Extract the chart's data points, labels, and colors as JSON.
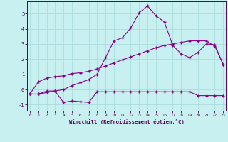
{
  "xlabel": "Windchill (Refroidissement éolien,°C)",
  "background_color": "#c8f0f0",
  "grid_color": "#aadddd",
  "line_color": "#880088",
  "hours": [
    0,
    1,
    2,
    3,
    4,
    5,
    6,
    7,
    8,
    9,
    10,
    11,
    12,
    13,
    14,
    15,
    16,
    17,
    18,
    19,
    20,
    21,
    22,
    23
  ],
  "line1": [
    -0.3,
    -0.3,
    -0.1,
    -0.1,
    -0.85,
    -0.75,
    -0.8,
    -0.85,
    -0.15,
    -0.15,
    -0.15,
    -0.15,
    -0.15,
    -0.15,
    -0.15,
    -0.15,
    -0.15,
    -0.15,
    -0.15,
    -0.15,
    -0.4,
    -0.4,
    -0.4,
    -0.4
  ],
  "line2": [
    -0.3,
    0.5,
    0.75,
    0.85,
    0.9,
    1.05,
    1.1,
    1.2,
    1.35,
    1.55,
    1.75,
    1.95,
    2.15,
    2.35,
    2.55,
    2.75,
    2.9,
    3.0,
    3.1,
    3.2,
    3.2,
    3.2,
    2.85,
    1.65
  ],
  "line3": [
    -0.3,
    -0.3,
    -0.2,
    -0.1,
    0.0,
    0.25,
    0.45,
    0.65,
    1.0,
    2.1,
    3.2,
    3.4,
    4.05,
    5.05,
    5.5,
    4.85,
    4.45,
    2.9,
    2.35,
    2.1,
    2.45,
    3.0,
    2.95,
    1.65
  ],
  "ylim": [
    -1.4,
    5.8
  ],
  "xlim": [
    -0.3,
    23.3
  ],
  "yticks": [
    -1,
    0,
    1,
    2,
    3,
    4,
    5
  ],
  "xticks": [
    0,
    1,
    2,
    3,
    4,
    5,
    6,
    7,
    8,
    9,
    10,
    11,
    12,
    13,
    14,
    15,
    16,
    17,
    18,
    19,
    20,
    21,
    22,
    23
  ]
}
